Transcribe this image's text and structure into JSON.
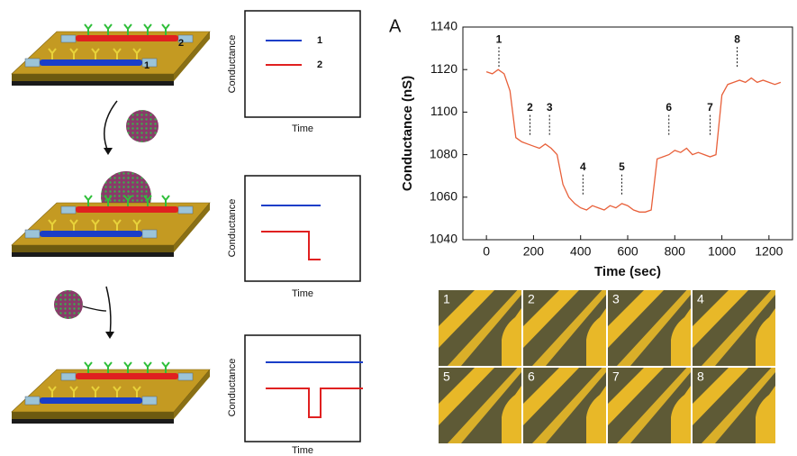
{
  "chart_data": {
    "type": "line",
    "panel_label": "A",
    "x_label": "Time (sec)",
    "y_label": "Conductance (nS)",
    "x": [
      0,
      25,
      50,
      75,
      100,
      125,
      150,
      175,
      200,
      225,
      250,
      275,
      300,
      325,
      350,
      375,
      400,
      425,
      450,
      475,
      500,
      525,
      550,
      575,
      600,
      625,
      650,
      675,
      700,
      725,
      750,
      775,
      800,
      825,
      850,
      875,
      900,
      925,
      950,
      975,
      1000,
      1025,
      1050,
      1075,
      1100,
      1125,
      1150,
      1175,
      1200,
      1225,
      1250
    ],
    "series": [
      {
        "color": "#e8603a",
        "values": [
          1119,
          1118,
          1120,
          1118,
          1110,
          1088,
          1086,
          1085,
          1084,
          1083,
          1085,
          1083,
          1080,
          1066,
          1060,
          1057,
          1055,
          1054,
          1056,
          1055,
          1054,
          1056,
          1055,
          1057,
          1056,
          1054,
          1053,
          1053,
          1054,
          1078,
          1079,
          1080,
          1082,
          1081,
          1083,
          1080,
          1081,
          1080,
          1079,
          1080,
          1108,
          1113,
          1114,
          1115,
          1114,
          1116,
          1114,
          1115,
          1114,
          1113,
          1114
        ]
      }
    ],
    "xlim": [
      -100,
      1300
    ],
    "ylim": [
      1040,
      1140
    ],
    "xticks": [
      0,
      200,
      400,
      600,
      800,
      1000,
      1200
    ],
    "yticks": [
      1040,
      1060,
      1080,
      1100,
      1120,
      1140
    ],
    "grid": false,
    "annotations": [
      {
        "text": "1",
        "x": 53,
        "y": 1134
      },
      {
        "text": "2",
        "x": 185,
        "y": 1102
      },
      {
        "text": "3",
        "x": 268,
        "y": 1102
      },
      {
        "text": "4",
        "x": 410,
        "y": 1074
      },
      {
        "text": "5",
        "x": 575,
        "y": 1074
      },
      {
        "text": "6",
        "x": 775,
        "y": 1102
      },
      {
        "text": "7",
        "x": 950,
        "y": 1102
      },
      {
        "text": "8",
        "x": 1065,
        "y": 1134
      }
    ]
  },
  "schematic": {
    "device_labels": [
      "1",
      "2"
    ],
    "panels": [
      {
        "y_label": "Conductance",
        "x_label": "Time",
        "legend": [
          "1",
          "2"
        ]
      },
      {
        "y_label": "Conductance",
        "x_label": "Time"
      },
      {
        "y_label": "Conductance",
        "x_label": "Time"
      }
    ]
  },
  "micrographs": {
    "labels": [
      "1",
      "2",
      "3",
      "4",
      "5",
      "6",
      "7",
      "8"
    ]
  }
}
